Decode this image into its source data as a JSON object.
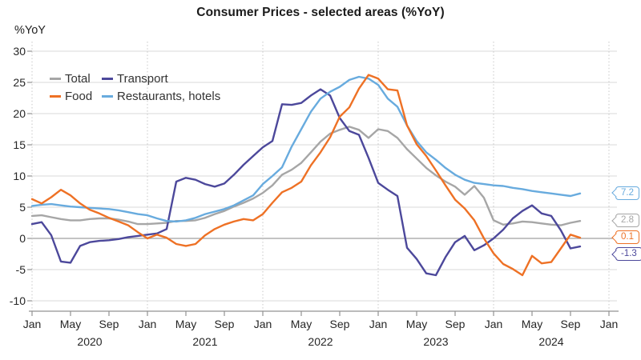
{
  "chart_data": {
    "type": "line",
    "title": "Consumer Prices - selected areas (%YoY)",
    "y_axis_label": "%YoY",
    "x_range": "Jan 2020 - Oct 2024",
    "ylim": [
      -10,
      30
    ],
    "grid": {
      "h_color": "#d9d9d9",
      "zero_color": "#a0a0a0",
      "v_dotted_color": "#c7c7c7",
      "axis_color": "#929292",
      "text_color": "#262626"
    },
    "y_ticks": [
      30,
      25,
      20,
      15,
      10,
      5,
      0,
      -5,
      -10
    ],
    "x_ticks": [
      {
        "m": 0,
        "label": "Jan"
      },
      {
        "m": 4,
        "label": "May"
      },
      {
        "m": 8,
        "label": "Sep"
      },
      {
        "m": 12,
        "label": "Jan"
      },
      {
        "m": 16,
        "label": "May"
      },
      {
        "m": 20,
        "label": "Sep"
      },
      {
        "m": 24,
        "label": "Jan"
      },
      {
        "m": 28,
        "label": "May"
      },
      {
        "m": 32,
        "label": "Sep"
      },
      {
        "m": 36,
        "label": "Jan"
      },
      {
        "m": 40,
        "label": "May"
      },
      {
        "m": 44,
        "label": "Sep"
      },
      {
        "m": 48,
        "label": "Jan"
      },
      {
        "m": 52,
        "label": "May"
      },
      {
        "m": 56,
        "label": "Sep"
      },
      {
        "m": 60,
        "label": "Jan"
      }
    ],
    "year_labels": [
      {
        "m": 6,
        "label": "2020"
      },
      {
        "m": 18,
        "label": "2021"
      },
      {
        "m": 30,
        "label": "2022"
      },
      {
        "m": 42,
        "label": "2023"
      },
      {
        "m": 54,
        "label": "2024"
      }
    ],
    "v_gridlines_months": [
      0,
      12,
      24,
      36,
      48,
      60
    ],
    "series": [
      {
        "name": "Total",
        "color": "#a6a6a6",
        "values": [
          3.6,
          3.7,
          3.4,
          3.1,
          2.9,
          2.9,
          3.1,
          3.2,
          3.2,
          3.0,
          2.7,
          2.3,
          2.3,
          2.4,
          2.5,
          2.8,
          2.8,
          2.9,
          3.3,
          3.9,
          4.4,
          5.1,
          5.7,
          6.4,
          7.3,
          8.5,
          10.2,
          11.0,
          12.1,
          13.8,
          15.5,
          16.8,
          17.4,
          17.9,
          17.4,
          16.1,
          17.5,
          17.2,
          16.1,
          14.3,
          12.8,
          11.3,
          10.1,
          9.1,
          8.3,
          7.0,
          8.4,
          6.5,
          2.9,
          2.2,
          2.4,
          2.7,
          2.6,
          2.4,
          2.2,
          2.1,
          2.5,
          2.8
        ]
      },
      {
        "name": "Transport",
        "color": "#4c489b",
        "values": [
          2.3,
          2.6,
          0.5,
          -3.7,
          -3.9,
          -1.2,
          -0.6,
          -0.4,
          -0.3,
          -0.1,
          0.2,
          0.4,
          0.6,
          0.8,
          1.5,
          9.1,
          9.7,
          9.4,
          8.7,
          8.3,
          8.8,
          10.2,
          11.8,
          13.2,
          14.6,
          15.6,
          21.5,
          21.4,
          21.7,
          22.9,
          23.9,
          22.9,
          19.3,
          17.2,
          16.6,
          12.9,
          8.9,
          7.8,
          6.8,
          -1.5,
          -3.3,
          -5.6,
          -5.9,
          -3.0,
          -0.6,
          0.4,
          -1.9,
          -1.1,
          0.0,
          1.4,
          3.2,
          4.4,
          5.3,
          4.0,
          3.6,
          1.3,
          -1.6,
          -1.3
        ]
      },
      {
        "name": "Restaurants, hotels",
        "color": "#68abde",
        "values": [
          5.2,
          5.4,
          5.5,
          5.3,
          5.1,
          5.0,
          4.9,
          4.8,
          4.7,
          4.5,
          4.2,
          3.9,
          3.7,
          3.2,
          2.8,
          2.7,
          2.9,
          3.3,
          3.9,
          4.3,
          4.7,
          5.3,
          6.1,
          6.9,
          8.7,
          10.0,
          11.4,
          14.7,
          17.5,
          20.3,
          22.4,
          23.5,
          24.3,
          25.4,
          25.9,
          25.6,
          24.6,
          22.4,
          21.1,
          18.1,
          15.6,
          13.8,
          12.6,
          11.3,
          10.2,
          9.4,
          8.9,
          8.7,
          8.5,
          8.4,
          8.1,
          7.9,
          7.6,
          7.4,
          7.2,
          7.0,
          6.8,
          7.2
        ]
      },
      {
        "name": "Food",
        "color": "#ee7125",
        "values": [
          6.3,
          5.6,
          6.6,
          7.8,
          6.9,
          5.6,
          4.6,
          4.0,
          3.3,
          2.7,
          2.1,
          1.0,
          0.0,
          0.6,
          0.1,
          -0.9,
          -1.2,
          -0.9,
          0.5,
          1.5,
          2.2,
          2.7,
          3.1,
          2.9,
          3.9,
          5.7,
          7.4,
          8.1,
          9.1,
          11.7,
          13.8,
          16.2,
          19.5,
          21.0,
          24.0,
          26.2,
          25.6,
          23.9,
          23.7,
          18.1,
          15.1,
          13.2,
          10.9,
          8.5,
          6.2,
          4.8,
          2.9,
          0.0,
          -2.4,
          -4.1,
          -4.9,
          -5.9,
          -2.8,
          -4.0,
          -3.8,
          -1.6,
          0.6,
          0.1
        ]
      }
    ],
    "legend_rows": [
      [
        "Total",
        "Transport"
      ],
      [
        "Food",
        "Restaurants, hotels"
      ]
    ],
    "end_labels": [
      {
        "text": "7.2",
        "value": 7.2,
        "series": "Restaurants, hotels",
        "color": "#68abde"
      },
      {
        "text": "2.8",
        "value": 2.8,
        "series": "Total",
        "color": "#a6a6a6"
      },
      {
        "text": "0.1",
        "value": 0.1,
        "series": "Food",
        "color": "#ee7125"
      },
      {
        "text": "-1.3",
        "value": -1.3,
        "series": "Transport",
        "color": "#4c489b"
      }
    ]
  }
}
